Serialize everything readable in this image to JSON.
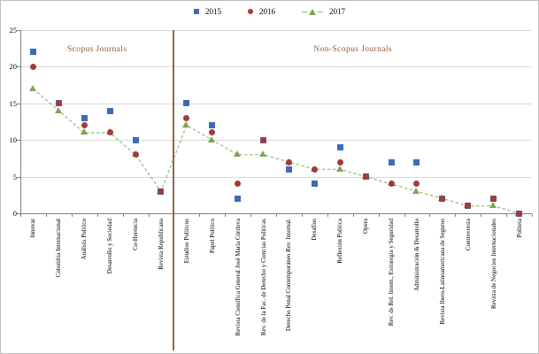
{
  "legend": {
    "items": [
      {
        "label": "2015",
        "marker": "square",
        "color": "#3d6cb4"
      },
      {
        "label": "2016",
        "marker": "circle",
        "color": "#a23b3b"
      },
      {
        "label": "2017",
        "marker": "triangle",
        "color": "#7ea556"
      }
    ]
  },
  "colors": {
    "gridline": "#d9d9d9",
    "axis": "#808080",
    "divider": "#8a6a50",
    "section_text": "#8c5a3c",
    "dash_line": "#97ba74"
  },
  "chart_data": {
    "type": "scatter",
    "title": "",
    "xlabel": "",
    "ylabel": "",
    "ylim": [
      0,
      25
    ],
    "grid": "horizontal",
    "legend_position": "top-center",
    "y_axis": {
      "ticks": [
        0,
        5,
        10,
        15,
        20,
        25
      ]
    },
    "categories": [
      "Innovar",
      "Colombia Internacional",
      "Análisis Político",
      "Desarrollo y Sociedad",
      "Co-Herencia",
      "Revista Republicana",
      "Estudios Políticos",
      "Papel Político",
      "Revista Científica General José María Córdova",
      "Rev. de la Fac. de Derecho y Ciencias Políticas",
      "Derecho Penal Contemporáneo Rev. Internal.",
      "Desafíos",
      "Reflexión Política",
      "Opera",
      "Rev. de Rel. Intern., Estrategia y Seguridad",
      "Administración & Desarrollo",
      "Revista Ibero-Latinoamericana de Seguros",
      "Controversia",
      "Revista de Negocios Internacionales",
      "Politeia"
    ],
    "series": [
      {
        "name": "2015",
        "marker": "square",
        "color": "#3d6cb4",
        "line": "none",
        "values": [
          22,
          15,
          13,
          14,
          10,
          3,
          15,
          12,
          2,
          10,
          6,
          4,
          9,
          5,
          7,
          7,
          2,
          1,
          2,
          0
        ]
      },
      {
        "name": "2016",
        "marker": "circle",
        "color": "#a23b3b",
        "line": "none",
        "values": [
          20,
          15,
          12,
          11,
          8,
          3,
          13,
          11,
          4,
          10,
          7,
          6,
          7,
          5,
          4,
          4,
          2,
          1,
          2,
          0
        ]
      },
      {
        "name": "2017",
        "marker": "triangle",
        "color": "#7ea556",
        "line": "dashed",
        "values": [
          17,
          14,
          11,
          11,
          8,
          3,
          12,
          10,
          8,
          8,
          7,
          6,
          6,
          5,
          4,
          3,
          2,
          1,
          1,
          0
        ]
      }
    ],
    "sections": [
      {
        "label": "Scopus Journals",
        "from": 0,
        "to": 5
      },
      {
        "label": "Non-Scopus Journals",
        "from": 6,
        "to": 19
      }
    ]
  }
}
